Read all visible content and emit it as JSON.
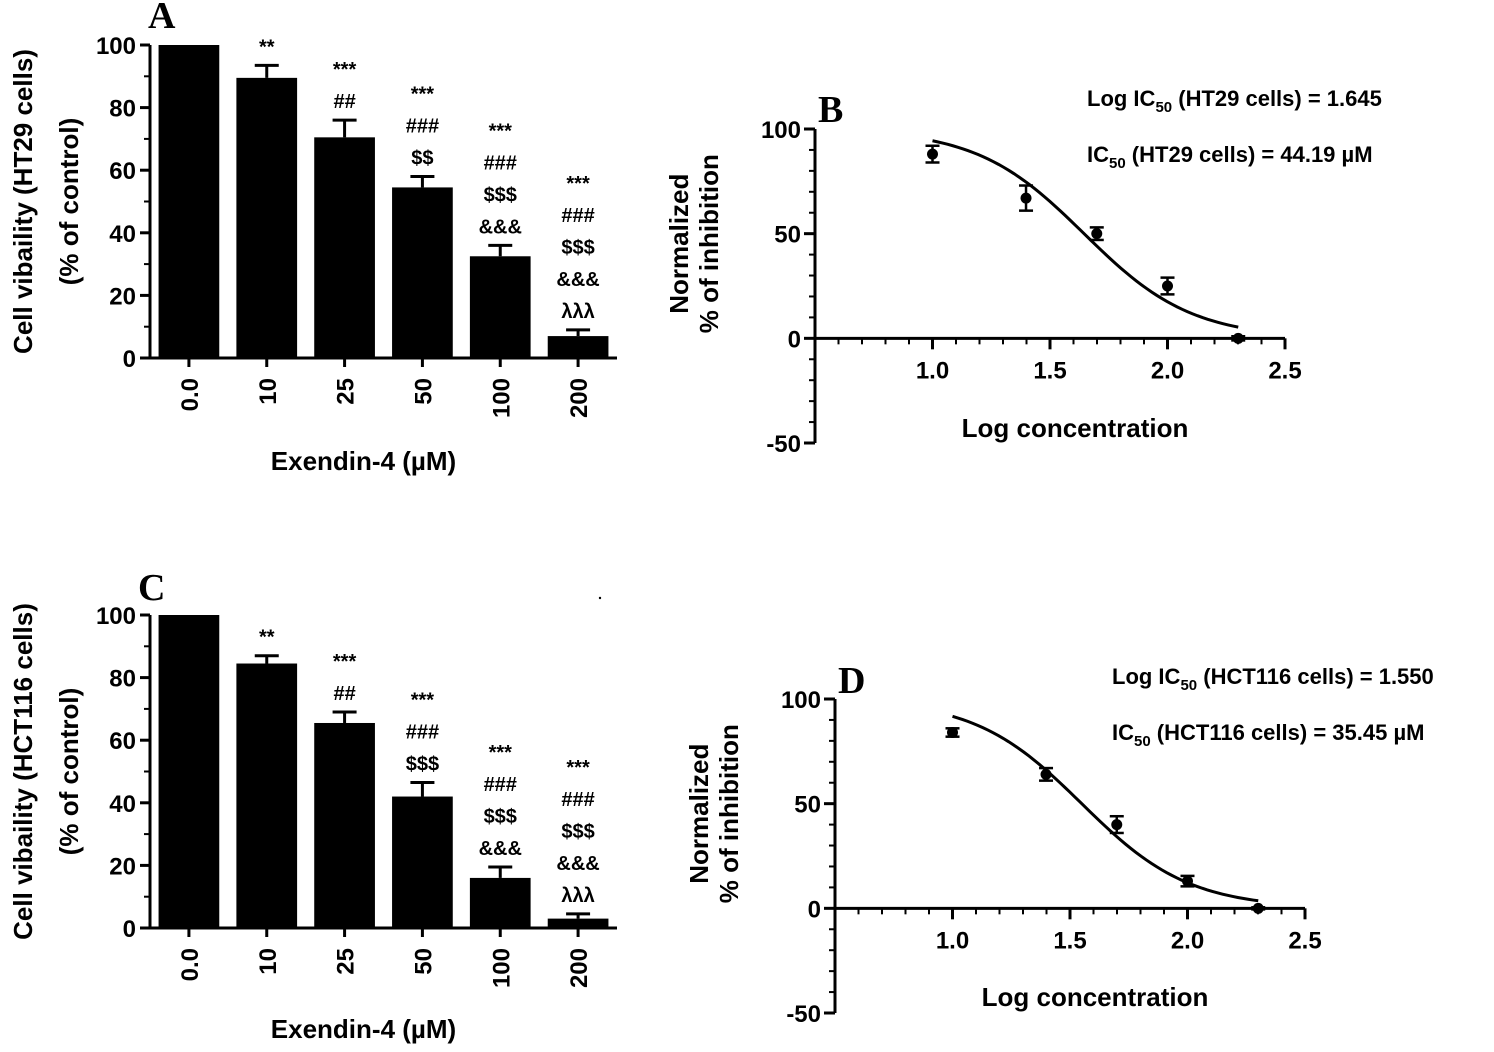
{
  "chart_data": [
    {
      "panel": "A",
      "type": "bar",
      "categories": [
        "0.0",
        "10",
        "25",
        "50",
        "100",
        "200"
      ],
      "values": [
        100,
        89.5,
        70.5,
        54.5,
        32.5,
        7
      ],
      "errors": [
        0,
        4,
        5.5,
        3.5,
        3.5,
        2
      ],
      "significance": [
        [],
        [
          "**"
        ],
        [
          "***",
          "##"
        ],
        [
          "***",
          "###",
          "$$"
        ],
        [
          "***",
          "###",
          "$$$",
          "&&&"
        ],
        [
          "***",
          "###",
          "$$$",
          "&&&",
          "λλλ"
        ]
      ],
      "ylabel_line1": "Cell vibaility (HT29 cells)",
      "ylabel_line2": "(% of control)",
      "xlabel": "Exendin-4 (µM)",
      "ylim": [
        0,
        100
      ],
      "yticks": [
        "0",
        "20",
        "40",
        "60",
        "80",
        "100"
      ],
      "bar_color": "#000000"
    },
    {
      "panel": "B",
      "type": "scatter",
      "fit": "sigmoidal dose-response",
      "x": [
        1.0,
        1.398,
        1.699,
        2.0,
        2.301
      ],
      "y": [
        88,
        67,
        50,
        25,
        0
      ],
      "errors": [
        4,
        6,
        3,
        4,
        1
      ],
      "logIC50": 1.645,
      "hill_slope": -1.9,
      "fit_xrange": [
        1.0,
        2.301
      ],
      "ylabel_line1": "Normalized",
      "ylabel_line2": "% of inhibition",
      "xlabel": "Log concentration",
      "xlim": [
        0.5,
        2.5
      ],
      "ylim": [
        -50,
        100
      ],
      "xticks": [
        "1.0",
        "1.5",
        "2.0",
        "2.5"
      ],
      "yticks": [
        "-50",
        "0",
        "50",
        "100"
      ],
      "ann1": {
        "pre": "Log IC",
        "sub": "50",
        "post": " (HT29 cells) = 1.645"
      },
      "ann2": {
        "pre": "IC",
        "sub": "50",
        "post": " (HT29 cells) = 44.19 µM"
      }
    },
    {
      "panel": "C",
      "type": "bar",
      "categories": [
        "0.0",
        "10",
        "25",
        "50",
        "100",
        "200"
      ],
      "values": [
        100,
        84.5,
        65.5,
        42,
        16,
        3
      ],
      "errors": [
        0,
        2.5,
        3.5,
        4.5,
        3.5,
        1.5
      ],
      "significance": [
        [],
        [
          "**"
        ],
        [
          "***",
          "##"
        ],
        [
          "***",
          "###",
          "$$$"
        ],
        [
          "***",
          "###",
          "$$$",
          "&&&"
        ],
        [
          "***",
          "###",
          "$$$",
          "&&&",
          "λλλ"
        ]
      ],
      "ylabel_line1": "Cell vibaility (HCT116 cells)",
      "ylabel_line2": "(% of control)",
      "xlabel": "Exendin-4 (µM)",
      "ylim": [
        0,
        100
      ],
      "yticks": [
        "0",
        "20",
        "40",
        "60",
        "80",
        "100"
      ],
      "bar_color": "#000000"
    },
    {
      "panel": "D",
      "type": "scatter",
      "fit": "sigmoidal dose-response",
      "x": [
        1.0,
        1.398,
        1.699,
        2.0,
        2.301
      ],
      "y": [
        84,
        64,
        40,
        13,
        0
      ],
      "errors": [
        2,
        3,
        4,
        2.5,
        0.5
      ],
      "logIC50": 1.55,
      "hill_slope": -1.9,
      "fit_xrange": [
        1.0,
        2.301
      ],
      "ylabel_line1": "Normalized",
      "ylabel_line2": "% of inhibition",
      "xlabel": "Log concentration",
      "xlim": [
        0.5,
        2.5
      ],
      "ylim": [
        -50,
        100
      ],
      "xticks": [
        "1.0",
        "1.5",
        "2.0",
        "2.5"
      ],
      "yticks": [
        "-50",
        "0",
        "50",
        "100"
      ],
      "ann1": {
        "pre": "Log IC",
        "sub": "50",
        "post": " (HCT116 cells) = 1.550"
      },
      "ann2": {
        "pre": "IC",
        "sub": "50",
        "post": " (HCT116 cells) = 35.45 µM"
      }
    }
  ]
}
